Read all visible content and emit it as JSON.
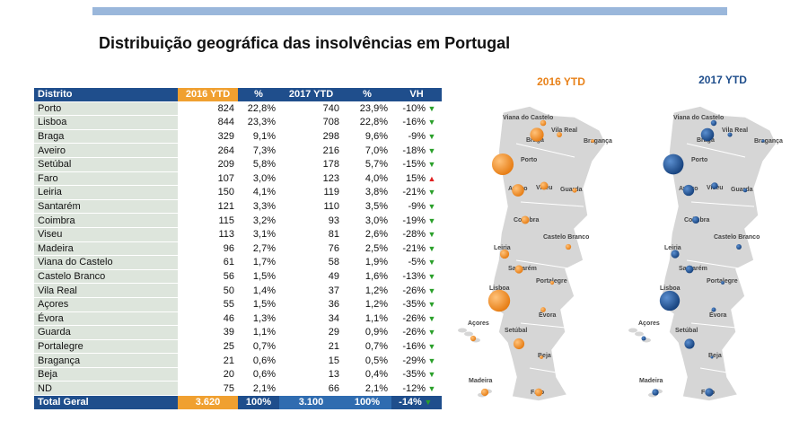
{
  "title": "Distribuição geográfica das insolvências em Portugal",
  "table": {
    "header": [
      "Distrito",
      "2016 YTD",
      "%",
      "2017 YTD",
      "%",
      "VH"
    ],
    "rows": [
      [
        "Porto",
        824,
        "22,8%",
        740,
        "23,9%",
        "-10%"
      ],
      [
        "Lisboa",
        844,
        "23,3%",
        708,
        "22,8%",
        "-16%"
      ],
      [
        "Braga",
        329,
        "9,1%",
        298,
        "9,6%",
        "-9%"
      ],
      [
        "Aveiro",
        264,
        "7,3%",
        216,
        "7,0%",
        "-18%"
      ],
      [
        "Setúbal",
        209,
        "5,8%",
        178,
        "5,7%",
        "-15%"
      ],
      [
        "Faro",
        107,
        "3,0%",
        123,
        "4,0%",
        "15%"
      ],
      [
        "Leiria",
        150,
        "4,1%",
        119,
        "3,8%",
        "-21%"
      ],
      [
        "Santarém",
        121,
        "3,3%",
        110,
        "3,5%",
        "-9%"
      ],
      [
        "Coimbra",
        115,
        "3,2%",
        93,
        "3,0%",
        "-19%"
      ],
      [
        "Viseu",
        113,
        "3,1%",
        81,
        "2,6%",
        "-28%"
      ],
      [
        "Madeira",
        96,
        "2,7%",
        76,
        "2,5%",
        "-21%"
      ],
      [
        "Viana do Castelo",
        61,
        "1,7%",
        58,
        "1,9%",
        "-5%"
      ],
      [
        "Castelo Branco",
        56,
        "1,5%",
        49,
        "1,6%",
        "-13%"
      ],
      [
        "Vila Real",
        50,
        "1,4%",
        37,
        "1,2%",
        "-26%"
      ],
      [
        "Açores",
        55,
        "1,5%",
        36,
        "1,2%",
        "-35%"
      ],
      [
        "Évora",
        46,
        "1,3%",
        34,
        "1,1%",
        "-26%"
      ],
      [
        "Guarda",
        39,
        "1,1%",
        29,
        "0,9%",
        "-26%"
      ],
      [
        "Portalegre",
        25,
        "0,7%",
        21,
        "0,7%",
        "-16%"
      ],
      [
        "Bragança",
        21,
        "0,6%",
        15,
        "0,5%",
        "-29%"
      ],
      [
        "Beja",
        20,
        "0,6%",
        13,
        "0,4%",
        "-35%"
      ],
      [
        "ND",
        75,
        "2,1%",
        66,
        "2,1%",
        "-12%"
      ]
    ],
    "total": [
      "Total Geral",
      "3.620",
      "100%",
      "3.100",
      "100%",
      "-14%"
    ]
  },
  "maps": [
    {
      "title": "2016 YTD",
      "labels": [
        "Viana do Castelo",
        "Vila Real",
        "Braga",
        "Bragança",
        "Porto",
        "Aveiro",
        "Viseu",
        "Guarda",
        "Coimbra",
        "Castelo Branco",
        "Leiria",
        "Santarém",
        "Portalegre",
        "Lisboa",
        "Évora",
        "Açores",
        "Setúbal",
        "Beja",
        "Madeira",
        "Faro"
      ]
    },
    {
      "title": "2017 YTD",
      "labels": [
        "Viana do Castelo",
        "Vila Real",
        "Braga",
        "Bragança",
        "Porto",
        "Aveiro",
        "Viseu",
        "Guarda",
        "Coimbra",
        "Castelo Branco",
        "Leiria",
        "Santarém",
        "Portalegre",
        "Lisboa",
        "Évora",
        "Açores",
        "Setúbal",
        "Beja",
        "Madeira",
        "Faro"
      ]
    }
  ]
}
